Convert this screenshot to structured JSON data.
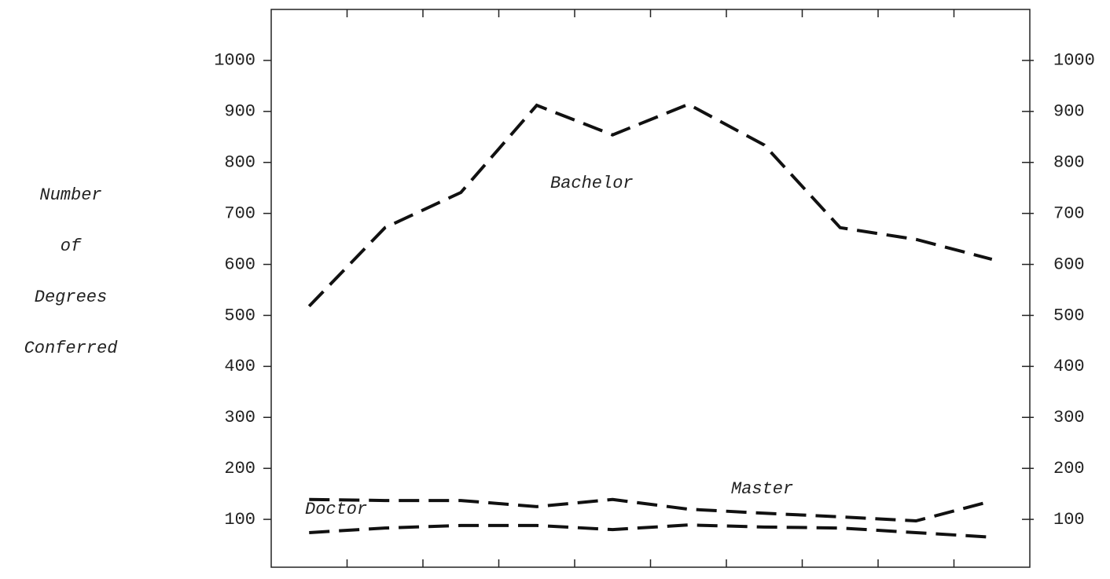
{
  "chart_data": {
    "type": "line",
    "ylabel": [
      "Number",
      "of",
      "Degrees",
      "Conferred"
    ],
    "categories": [
      null,
      null,
      null,
      null,
      null,
      null,
      null,
      null,
      null,
      null
    ],
    "series": [
      {
        "name": "Bachelor",
        "color": "#111111",
        "values": [
          518,
          672,
          741,
          912,
          854,
          914,
          834,
          672,
          649,
          610
        ]
      },
      {
        "name": "Master",
        "color": "#111111",
        "values": [
          139,
          137,
          137,
          125,
          139,
          120,
          112,
          105,
          97,
          136
        ]
      },
      {
        "name": "Doctor",
        "color": "#111111",
        "values": [
          74,
          83,
          88,
          88,
          80,
          89,
          85,
          83,
          74,
          65
        ]
      }
    ],
    "ylim": [
      0,
      1100
    ],
    "yticks": [
      100,
      200,
      300,
      400,
      500,
      600,
      700,
      800,
      900,
      1000
    ],
    "y2lim": [
      0,
      1100
    ],
    "y2ticks": [
      100,
      200,
      300,
      400,
      500,
      600,
      700,
      800,
      900,
      1000
    ],
    "grid": false
  }
}
